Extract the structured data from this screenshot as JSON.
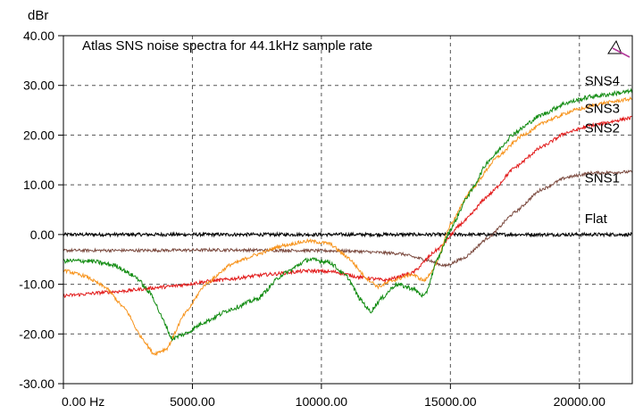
{
  "chart_data": {
    "type": "line",
    "title": "Atlas SNS noise spectra for 44.1kHz sample rate",
    "ylabel": "dBr",
    "xunit": "Hz",
    "xlim": [
      0,
      22050
    ],
    "ylim": [
      -30,
      40
    ],
    "xticks": [
      {
        "value": 0,
        "label": "0.00 Hz"
      },
      {
        "value": 5000,
        "label": "5000.00"
      },
      {
        "value": 10000,
        "label": "10000.00"
      },
      {
        "value": 15000,
        "label": "15000.00"
      },
      {
        "value": 20000,
        "label": "20000.00"
      }
    ],
    "yticks": [
      {
        "value": 40,
        "label": "40.00"
      },
      {
        "value": 30,
        "label": "30.00"
      },
      {
        "value": 20,
        "label": "20.00"
      },
      {
        "value": 10,
        "label": "10.00"
      },
      {
        "value": 0,
        "label": "0.00"
      },
      {
        "value": -10,
        "label": "-10.00"
      },
      {
        "value": -20,
        "label": "-20.00"
      },
      {
        "value": -30,
        "label": "-30.00"
      }
    ],
    "grid": true,
    "series": [
      {
        "name": "Flat",
        "color": "#000000",
        "noise": 0.35,
        "points": [
          [
            0,
            0
          ],
          [
            22050,
            0
          ]
        ]
      },
      {
        "name": "SNS1",
        "color": "#7b4a3f",
        "noise": 0.3,
        "points": [
          [
            0,
            -3.2
          ],
          [
            3000,
            -3.2
          ],
          [
            6000,
            -3.1
          ],
          [
            9000,
            -3.2
          ],
          [
            11000,
            -3.3
          ],
          [
            13000,
            -3.8
          ],
          [
            14000,
            -5
          ],
          [
            14800,
            -6.3
          ],
          [
            15500,
            -4.8
          ],
          [
            16500,
            -0.5
          ],
          [
            17500,
            4.5
          ],
          [
            18500,
            9
          ],
          [
            19500,
            11.5
          ],
          [
            20500,
            12.4
          ],
          [
            22050,
            12.6
          ]
        ]
      },
      {
        "name": "SNS2",
        "color": "#e21b1b",
        "noise": 0.35,
        "points": [
          [
            0,
            -12.3
          ],
          [
            2000,
            -11.5
          ],
          [
            4000,
            -10.5
          ],
          [
            6000,
            -9.2
          ],
          [
            8000,
            -8
          ],
          [
            9500,
            -7.3
          ],
          [
            10500,
            -7.5
          ],
          [
            11500,
            -8.6
          ],
          [
            12500,
            -9.2
          ],
          [
            13500,
            -7.8
          ],
          [
            14500,
            -3
          ],
          [
            15500,
            2.5
          ],
          [
            16500,
            8
          ],
          [
            17500,
            13.5
          ],
          [
            18500,
            17.5
          ],
          [
            19500,
            20.5
          ],
          [
            20500,
            22
          ],
          [
            22050,
            23.5
          ]
        ]
      },
      {
        "name": "SNS3",
        "color": "#f7941d",
        "noise": 0.35,
        "points": [
          [
            0,
            -7.2
          ],
          [
            800,
            -8.3
          ],
          [
            1600,
            -10.5
          ],
          [
            2400,
            -15
          ],
          [
            3000,
            -20.5
          ],
          [
            3500,
            -24
          ],
          [
            4000,
            -23
          ],
          [
            4700,
            -16
          ],
          [
            5500,
            -10
          ],
          [
            6500,
            -6
          ],
          [
            7500,
            -4
          ],
          [
            8500,
            -2.2
          ],
          [
            9500,
            -1.3
          ],
          [
            10300,
            -1.8
          ],
          [
            11000,
            -4.5
          ],
          [
            11800,
            -9
          ],
          [
            12200,
            -10.5
          ],
          [
            12800,
            -9.2
          ],
          [
            13500,
            -8
          ],
          [
            14000,
            -9.3
          ],
          [
            14400,
            -6.5
          ],
          [
            15000,
            2
          ],
          [
            15800,
            9
          ],
          [
            16800,
            15.5
          ],
          [
            17800,
            20
          ],
          [
            18800,
            23
          ],
          [
            19800,
            25
          ],
          [
            21000,
            26.5
          ],
          [
            22050,
            27.3
          ]
        ]
      },
      {
        "name": "SNS4",
        "color": "#128c12",
        "noise": 0.45,
        "points": [
          [
            0,
            -5.3
          ],
          [
            1000,
            -5.3
          ],
          [
            2000,
            -6.2
          ],
          [
            2800,
            -8.5
          ],
          [
            3400,
            -12
          ],
          [
            3900,
            -17.5
          ],
          [
            4200,
            -21
          ],
          [
            4700,
            -20
          ],
          [
            5500,
            -17.5
          ],
          [
            6500,
            -15
          ],
          [
            7500,
            -13
          ],
          [
            8500,
            -8
          ],
          [
            9500,
            -5
          ],
          [
            10300,
            -5.5
          ],
          [
            11000,
            -8.5
          ],
          [
            11500,
            -13
          ],
          [
            11900,
            -15.5
          ],
          [
            12300,
            -13
          ],
          [
            12900,
            -10
          ],
          [
            13500,
            -10.8
          ],
          [
            14000,
            -12.5
          ],
          [
            14500,
            -5
          ],
          [
            15000,
            1
          ],
          [
            15700,
            8
          ],
          [
            16500,
            15
          ],
          [
            17500,
            20.5
          ],
          [
            18500,
            24
          ],
          [
            19500,
            26.5
          ],
          [
            20500,
            27.8
          ],
          [
            22050,
            28.8
          ]
        ]
      }
    ],
    "series_labels": [
      {
        "name": "SNS4",
        "x": 20000,
        "y": 30
      },
      {
        "name": "SNS3",
        "x": 20000,
        "y": 24.5
      },
      {
        "name": "SNS2",
        "x": 20000,
        "y": 20.5
      },
      {
        "name": "SNS1",
        "x": 20000,
        "y": 10.5
      },
      {
        "name": "Flat",
        "x": 20000,
        "y": 2.3
      }
    ]
  },
  "toolbar": {
    "cursor_icon": "cursor-arrow-icon"
  }
}
